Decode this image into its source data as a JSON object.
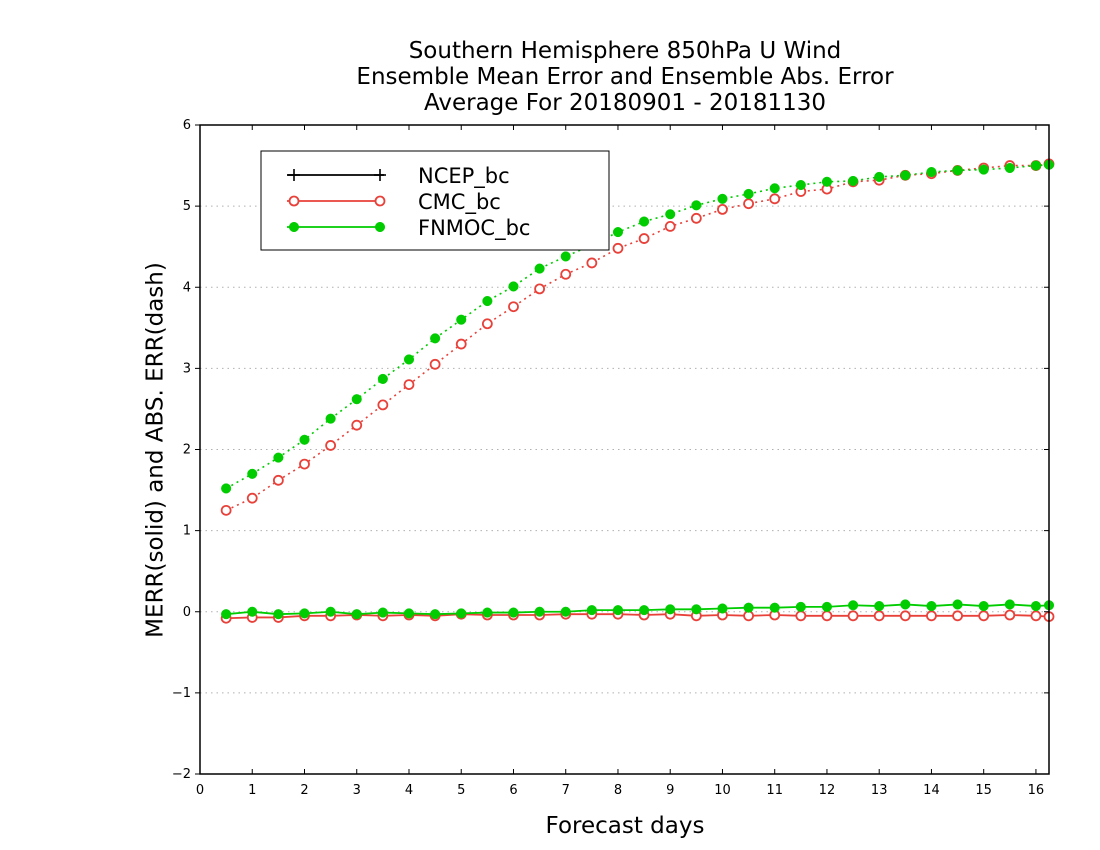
{
  "chart_data": {
    "type": "line",
    "title_lines": [
      "Southern Hemisphere 850hPa U Wind",
      "Ensemble Mean Error and Ensemble Abs. Error",
      "Average For 20180901 - 20181130"
    ],
    "xlabel": "Forecast days",
    "ylabel": "MERR(solid) and ABS. ERR(dash)",
    "xlim": [
      0,
      16.25
    ],
    "ylim": [
      -2,
      6
    ],
    "x_ticks": [
      "0",
      "1",
      "2",
      "3",
      "4",
      "5",
      "6",
      "7",
      "8",
      "9",
      "10",
      "11",
      "12",
      "13",
      "14",
      "15",
      "16"
    ],
    "y_ticks": [
      "6",
      "5",
      "4",
      "3",
      "2",
      "1",
      "0",
      "−1",
      "−2"
    ],
    "grid": "horizontal dotted",
    "legend_position": "top-left",
    "x": [
      0.5,
      1.0,
      1.5,
      2.0,
      2.5,
      3.0,
      3.5,
      4.0,
      4.5,
      5.0,
      5.5,
      6.0,
      6.5,
      7.0,
      7.5,
      8.0,
      8.5,
      9.0,
      9.5,
      10.0,
      10.5,
      11.0,
      11.5,
      12.0,
      12.5,
      13.0,
      13.5,
      14.0,
      14.5,
      15.0,
      15.5,
      16.0,
      16.25
    ],
    "series": [
      {
        "name": "NCEP_bc",
        "color": "#000000",
        "marker": "plus",
        "merr": [],
        "abs_err": []
      },
      {
        "name": "CMC_bc",
        "color": "#e8413a",
        "marker": "open-circle",
        "merr": [
          -0.08,
          -0.07,
          -0.07,
          -0.05,
          -0.05,
          -0.04,
          -0.05,
          -0.04,
          -0.05,
          -0.03,
          -0.04,
          -0.04,
          -0.04,
          -0.03,
          -0.03,
          -0.03,
          -0.04,
          -0.03,
          -0.05,
          -0.04,
          -0.05,
          -0.04,
          -0.05,
          -0.05,
          -0.05,
          -0.05,
          -0.05,
          -0.05,
          -0.05,
          -0.05,
          -0.04,
          -0.05,
          -0.06
        ],
        "abs_err": [
          1.25,
          1.4,
          1.62,
          1.82,
          2.05,
          2.3,
          2.55,
          2.8,
          3.05,
          3.3,
          3.55,
          3.76,
          3.98,
          4.16,
          4.3,
          4.48,
          4.6,
          4.75,
          4.85,
          4.96,
          5.03,
          5.09,
          5.18,
          5.21,
          5.3,
          5.32,
          5.38,
          5.4,
          5.44,
          5.47,
          5.5,
          5.5,
          5.52
        ]
      },
      {
        "name": "FNMOC_bc",
        "color": "#00cc00",
        "marker": "filled-circle",
        "merr": [
          -0.03,
          0.0,
          -0.03,
          -0.02,
          0.0,
          -0.03,
          -0.01,
          -0.02,
          -0.03,
          -0.02,
          -0.01,
          -0.01,
          0.0,
          0.0,
          0.02,
          0.02,
          0.02,
          0.03,
          0.03,
          0.04,
          0.05,
          0.05,
          0.06,
          0.06,
          0.08,
          0.07,
          0.09,
          0.07,
          0.09,
          0.07,
          0.09,
          0.07,
          0.08
        ],
        "abs_err": [
          1.52,
          1.7,
          1.9,
          2.12,
          2.38,
          2.62,
          2.87,
          3.11,
          3.37,
          3.6,
          3.83,
          4.01,
          4.23,
          4.38,
          4.52,
          4.68,
          4.81,
          4.9,
          5.01,
          5.09,
          5.15,
          5.22,
          5.26,
          5.3,
          5.31,
          5.36,
          5.38,
          5.42,
          5.44,
          5.45,
          5.47,
          5.5,
          5.51
        ]
      }
    ]
  }
}
